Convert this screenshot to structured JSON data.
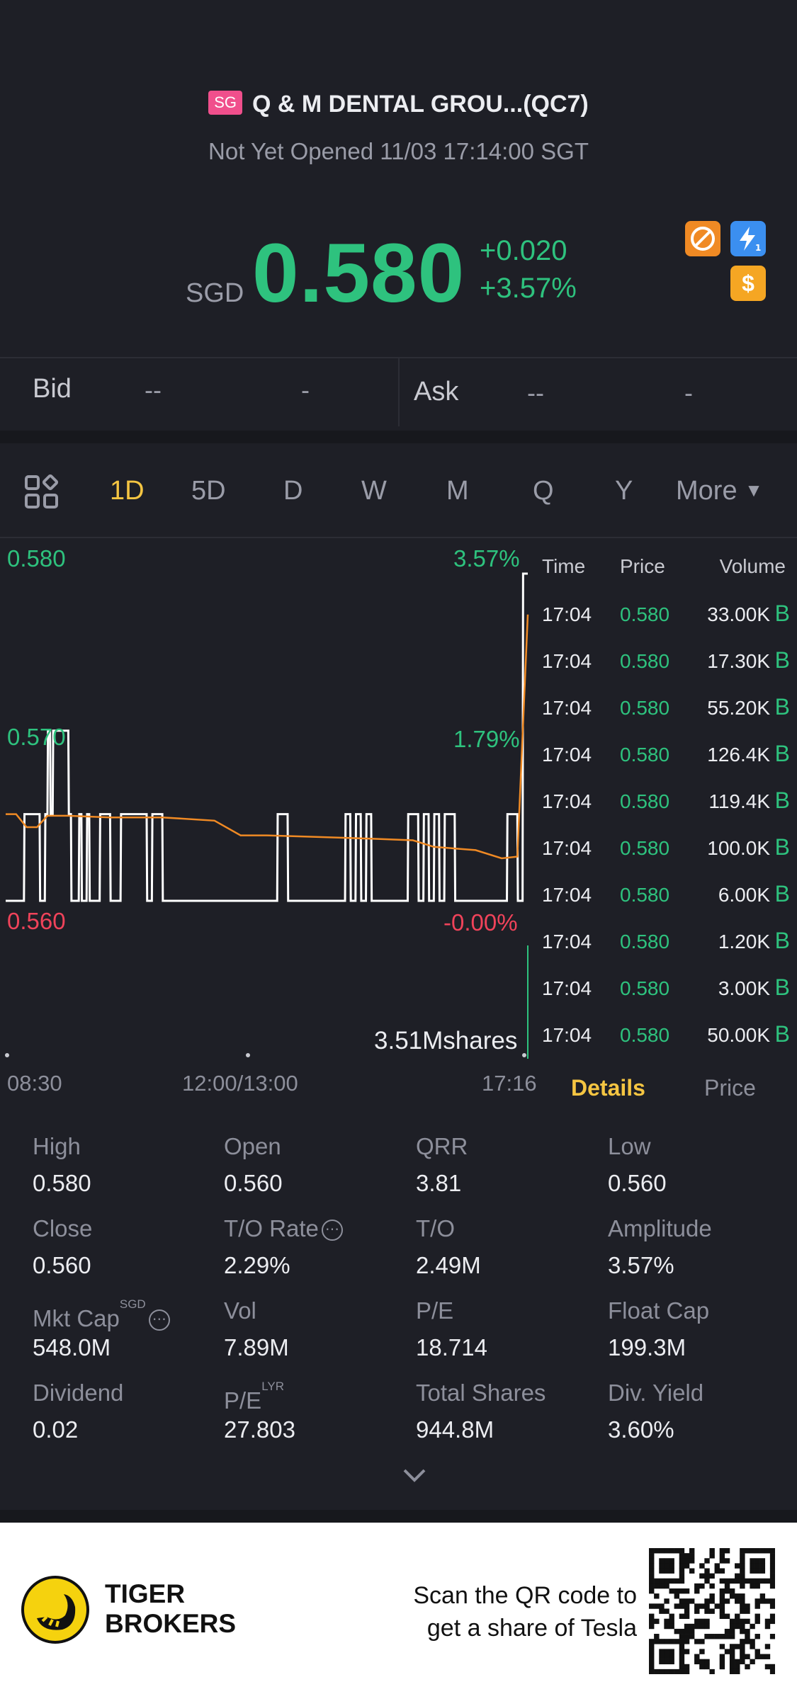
{
  "header": {
    "market_badge": "SG",
    "title": "Q & M DENTAL GROU...(QC7)",
    "status": "Not Yet Opened 11/03 17:14:00 SGT"
  },
  "quote": {
    "currency": "SGD",
    "price": "0.580",
    "change": "+0.020",
    "change_pct": "+3.57%",
    "up_color": "#2ec27e",
    "down_color": "#f0435a",
    "icons": [
      "no-shorting-icon",
      "lightning-level1-icon",
      "dollar-icon"
    ],
    "icon_dollar_glyph": "$"
  },
  "bid_ask": {
    "bid_label": "Bid",
    "bid_price": "--",
    "bid_size": "-",
    "ask_label": "Ask",
    "ask_price": "--",
    "ask_size": "-"
  },
  "period_tabs": {
    "active": "1D",
    "items": [
      "1D",
      "5D",
      "D",
      "W",
      "M",
      "Q",
      "Y"
    ],
    "more_label": "More"
  },
  "chart_data": {
    "type": "line",
    "y_left_labels": [
      "0.580",
      "0.570",
      "0.560"
    ],
    "y_right_labels": [
      "3.57%",
      "1.79%",
      "-0.00%"
    ],
    "x_labels": [
      "08:30",
      "12:00/13:00",
      "17:16"
    ],
    "volume_label": "3.51Mshares",
    "ylim": [
      0.56,
      0.58
    ],
    "series": [
      {
        "color": "#ffffff",
        "x": [
          0,
          0.035,
          0.036,
          0.05,
          0.065,
          0.066,
          0.075,
          0.076,
          0.08,
          0.081,
          0.085,
          0.086,
          0.09,
          0.091,
          0.12,
          0.121,
          0.125,
          0.126,
          0.14,
          0.141,
          0.145,
          0.146,
          0.155,
          0.156,
          0.16,
          0.161,
          0.18,
          0.181,
          0.2,
          0.201,
          0.22,
          0.221,
          0.27,
          0.271,
          0.28,
          0.281,
          0.3,
          0.301,
          0.52,
          0.521,
          0.54,
          0.541,
          0.65,
          0.651,
          0.66,
          0.661,
          0.67,
          0.671,
          0.68,
          0.681,
          0.69,
          0.691,
          0.7,
          0.701,
          0.77,
          0.771,
          0.79,
          0.791,
          0.8,
          0.801,
          0.81,
          0.811,
          0.82,
          0.821,
          0.83,
          0.831,
          0.84,
          0.841,
          0.86,
          0.861,
          0.96,
          0.961,
          0.98,
          0.981,
          0.99,
          0.991,
          1.0
        ],
        "y": [
          0.56,
          0.56,
          0.5653,
          0.5653,
          0.5653,
          0.56,
          0.56,
          0.5653,
          0.5653,
          0.5704,
          0.5704,
          0.5653,
          0.5653,
          0.5704,
          0.5704,
          0.5653,
          0.5653,
          0.56,
          0.56,
          0.5653,
          0.5653,
          0.56,
          0.56,
          0.5653,
          0.5653,
          0.56,
          0.56,
          0.5653,
          0.5653,
          0.56,
          0.56,
          0.5653,
          0.5653,
          0.56,
          0.56,
          0.5653,
          0.5653,
          0.56,
          0.56,
          0.5653,
          0.5653,
          0.56,
          0.56,
          0.5653,
          0.5653,
          0.56,
          0.56,
          0.5653,
          0.5653,
          0.56,
          0.56,
          0.5653,
          0.5653,
          0.56,
          0.56,
          0.5653,
          0.5653,
          0.56,
          0.56,
          0.5653,
          0.5653,
          0.56,
          0.56,
          0.5653,
          0.5653,
          0.56,
          0.56,
          0.5653,
          0.5653,
          0.56,
          0.56,
          0.5653,
          0.5653,
          0.56,
          0.56,
          0.58,
          0.58
        ]
      },
      {
        "color": "#f08a24",
        "x": [
          0,
          0.02,
          0.04,
          0.06,
          0.08,
          0.12,
          0.2,
          0.3,
          0.4,
          0.45,
          0.5,
          0.6,
          0.7,
          0.78,
          0.82,
          0.86,
          0.9,
          0.95,
          0.98,
          1.0
        ],
        "y": [
          0.5653,
          0.5653,
          0.5645,
          0.5645,
          0.5652,
          0.5652,
          0.5651,
          0.5651,
          0.5649,
          0.564,
          0.564,
          0.5639,
          0.5638,
          0.5637,
          0.5633,
          0.5632,
          0.5631,
          0.5626,
          0.5627,
          0.5775
        ]
      }
    ],
    "grid": false
  },
  "ticks": {
    "header": {
      "time": "Time",
      "price": "Price",
      "volume": "Volume"
    },
    "rows": [
      {
        "time": "17:04",
        "price": "0.580",
        "volume": "33.00K",
        "flag": "B"
      },
      {
        "time": "17:04",
        "price": "0.580",
        "volume": "17.30K",
        "flag": "B"
      },
      {
        "time": "17:04",
        "price": "0.580",
        "volume": "55.20K",
        "flag": "B"
      },
      {
        "time": "17:04",
        "price": "0.580",
        "volume": "126.4K",
        "flag": "B"
      },
      {
        "time": "17:04",
        "price": "0.580",
        "volume": "119.4K",
        "flag": "B"
      },
      {
        "time": "17:04",
        "price": "0.580",
        "volume": "100.0K",
        "flag": "B"
      },
      {
        "time": "17:04",
        "price": "0.580",
        "volume": "6.00K",
        "flag": "B"
      },
      {
        "time": "17:04",
        "price": "0.580",
        "volume": "1.20K",
        "flag": "B"
      },
      {
        "time": "17:04",
        "price": "0.580",
        "volume": "3.00K",
        "flag": "B"
      },
      {
        "time": "17:04",
        "price": "0.580",
        "volume": "50.00K",
        "flag": "B"
      }
    ],
    "tab_details": "Details",
    "tab_price": "Price"
  },
  "details": [
    {
      "label": "High",
      "value": "0.580"
    },
    {
      "label": "Open",
      "value": "0.560"
    },
    {
      "label": "QRR",
      "value": "3.81"
    },
    {
      "label": "Low",
      "value": "0.560"
    },
    {
      "label": "Close",
      "value": "0.560"
    },
    {
      "label": "T/O Rate",
      "value": "2.29%",
      "info": true
    },
    {
      "label": "T/O",
      "value": "2.49M"
    },
    {
      "label": "Amplitude",
      "value": "3.57%"
    },
    {
      "label": "Mkt Cap",
      "value": "548.0M",
      "sup": "SGD",
      "info": true
    },
    {
      "label": "Vol",
      "value": "7.89M"
    },
    {
      "label": "P/E",
      "value": "18.714"
    },
    {
      "label": "Float Cap",
      "value": "199.3M"
    },
    {
      "label": "Dividend",
      "value": "0.02"
    },
    {
      "label": "P/E",
      "value": "27.803",
      "sup": "LYR"
    },
    {
      "label": "Total Shares",
      "value": "944.8M"
    },
    {
      "label": "Div. Yield",
      "value": "3.60%"
    }
  ],
  "footer": {
    "brand_line1": "TIGER",
    "brand_line2": "BROKERS",
    "promo_line1": "Scan the QR code to",
    "promo_line2": "get a share of Tesla"
  }
}
